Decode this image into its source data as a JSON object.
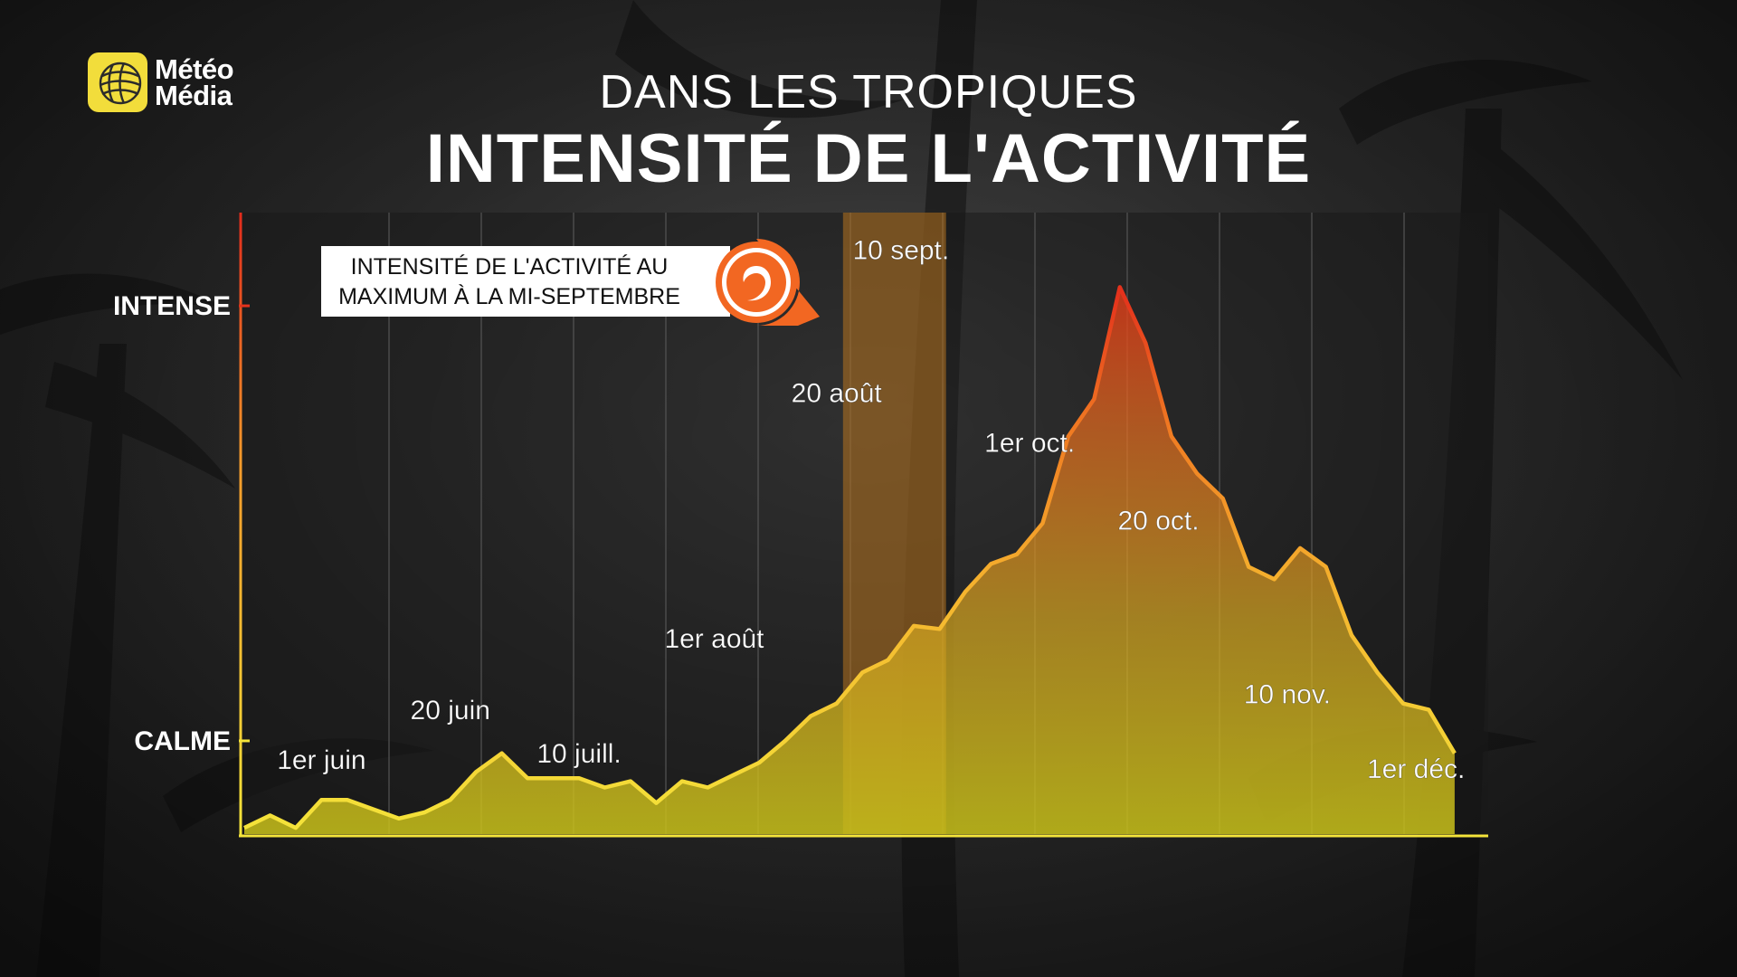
{
  "brand": {
    "name_line1": "Météo",
    "name_line2": "Média"
  },
  "header": {
    "subtitle": "DANS LES TROPIQUES",
    "title": "INTENSITÉ DE L'ACTIVITÉ"
  },
  "callout": {
    "line1": "INTENSITÉ DE L'ACTIVITÉ AU",
    "line2": "MAXIMUM À LA MI-SEPTEMBRE",
    "icon": "hurricane-icon"
  },
  "colors": {
    "brand_yellow": "#f2dd3b",
    "curve_low": "#f4e43a",
    "curve_high": "#e4321c",
    "peak_band": "#b8741f",
    "callout_orange": "#f26722"
  },
  "chart_data": {
    "type": "area",
    "x_label_unit": "day of season",
    "y_tick_labels": [
      {
        "label": "CALME",
        "value": 1.5
      },
      {
        "label": "INTENSE",
        "value": 8.5
      }
    ],
    "ylim": [
      0,
      10
    ],
    "xlim": [
      1,
      190
    ],
    "grid": "vertical",
    "x": [
      1,
      5,
      9,
      13,
      17,
      21,
      25,
      29,
      33,
      37,
      41,
      45,
      49,
      53,
      57,
      61,
      65,
      69,
      73,
      77,
      81,
      85,
      89,
      93,
      97,
      101,
      105,
      109,
      113,
      117,
      121,
      125,
      129,
      133,
      137,
      141,
      145,
      149,
      153,
      157,
      161,
      165,
      169,
      173,
      177,
      181,
      185,
      189
    ],
    "y": [
      0.1,
      0.3,
      0.1,
      0.55,
      0.55,
      0.4,
      0.25,
      0.35,
      0.55,
      1.0,
      1.3,
      0.9,
      0.9,
      0.9,
      0.75,
      0.85,
      0.5,
      0.85,
      0.75,
      0.95,
      1.15,
      1.5,
      1.9,
      2.1,
      2.6,
      2.8,
      3.35,
      3.3,
      3.9,
      4.35,
      4.5,
      5.0,
      6.4,
      7.0,
      8.8,
      7.9,
      6.4,
      5.8,
      5.4,
      4.3,
      4.1,
      4.6,
      4.3,
      3.2,
      2.6,
      2.1,
      2.0,
      1.3
    ],
    "peak_band": {
      "from": 94,
      "to": 110
    },
    "annotations": [
      {
        "label": "1er juin",
        "x": 13,
        "y": 1.05
      },
      {
        "label": "20 juin",
        "x": 33,
        "y": 1.85
      },
      {
        "label": "10 juill.",
        "x": 53,
        "y": 1.15
      },
      {
        "label": "1er août",
        "x": 74,
        "y": 3.0
      },
      {
        "label": "20 août",
        "x": 93,
        "y": 6.95
      },
      {
        "label": "10 sept.",
        "x": 103,
        "y": 9.25
      },
      {
        "label": "1er oct.",
        "x": 123,
        "y": 6.15
      },
      {
        "label": "20 oct.",
        "x": 143,
        "y": 4.9
      },
      {
        "label": "10 nov.",
        "x": 163,
        "y": 2.1
      },
      {
        "label": "1er déc.",
        "x": 183,
        "y": 0.9
      }
    ]
  }
}
